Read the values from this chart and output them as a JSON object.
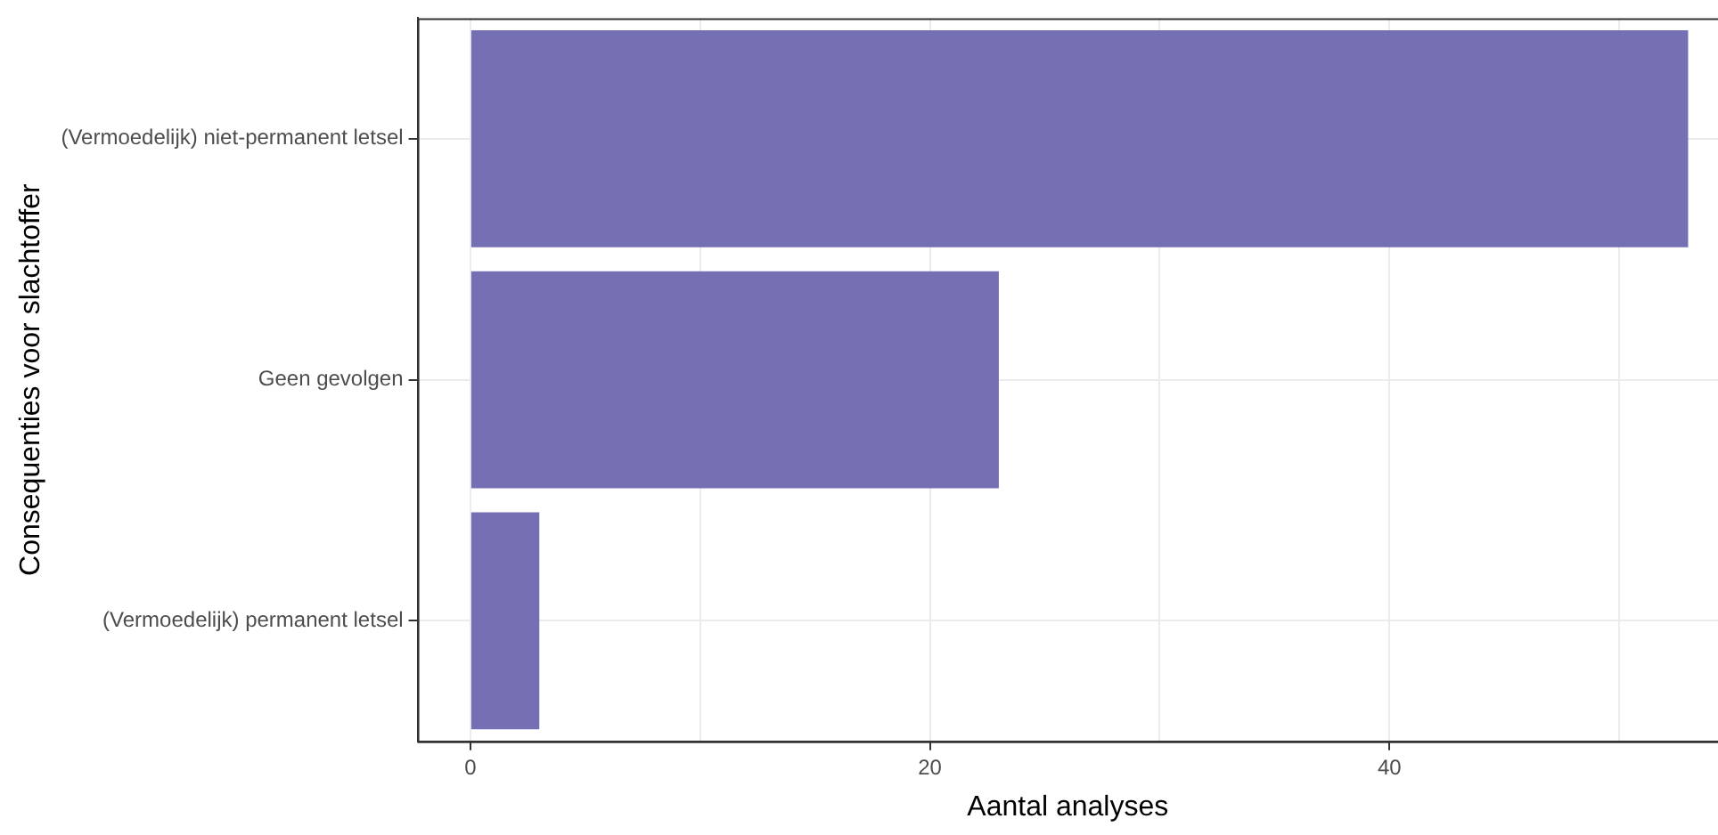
{
  "chart_data": {
    "type": "bar",
    "orientation": "horizontal",
    "xlabel": "Aantal analyses",
    "ylabel": "Consequenties voor slachtoffer",
    "categories": [
      "(Vermoedelijk) niet-permanent letsel",
      "Geen gevolgen",
      "(Vermoedelijk) permanent letsel"
    ],
    "values": [
      53,
      23,
      3
    ],
    "color": "#756fb3",
    "xlim": [
      -2.3,
      54.3
    ],
    "xticks": [
      0,
      {
        "value": 10,
        "label": null
      },
      20,
      {
        "value": 30,
        "label": null
      },
      40,
      {
        "value": 50,
        "label": null
      }
    ],
    "grid": true,
    "legend": false
  }
}
